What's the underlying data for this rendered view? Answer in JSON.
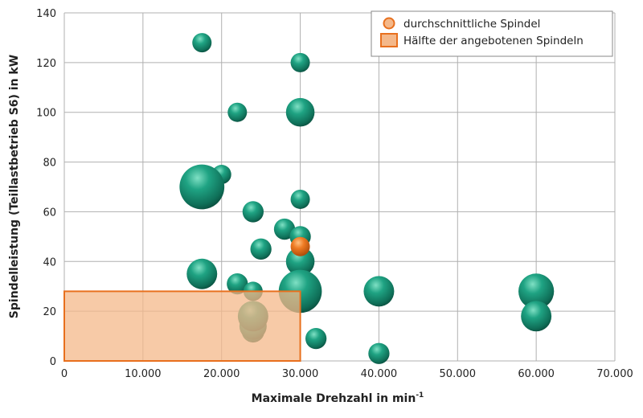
{
  "chart_data": {
    "type": "bubble",
    "xlabel": "Maximale Drehzahl in min",
    "xlabel_superscript": "-1",
    "ylabel": "Spindelleistung (Teillastbetrieb S6) in kW",
    "xlim": [
      0,
      70000
    ],
    "ylim": [
      0,
      140
    ],
    "x_ticks": [
      0,
      10000,
      20000,
      30000,
      40000,
      50000,
      60000,
      70000
    ],
    "x_tick_labels": [
      "0",
      "10.000",
      "20.000",
      "30.000",
      "40.000",
      "50.000",
      "60.000",
      "70.000"
    ],
    "y_ticks": [
      0,
      20,
      40,
      60,
      80,
      100,
      120,
      140
    ],
    "y_tick_labels": [
      "0",
      "20",
      "40",
      "60",
      "80",
      "100",
      "120",
      "140"
    ],
    "grid": true,
    "legend_position": "top-right",
    "colors": {
      "bubble": "#1a9a7a",
      "average": "#e8701e",
      "rect_fill": "#f4b88a",
      "rect_border": "#e8701e",
      "grid": "#b0b0b0"
    },
    "legend": [
      {
        "label": "durchschnittliche Spindel",
        "marker": "circle"
      },
      {
        "label": "Hälfte der angebotenen Spindeln",
        "marker": "square"
      }
    ],
    "points": [
      {
        "x": 17500,
        "y": 65,
        "size": 1
      },
      {
        "x": 17500,
        "y": 128,
        "size": 1
      },
      {
        "x": 30000,
        "y": 120,
        "size": 1
      },
      {
        "x": 22000,
        "y": 100,
        "size": 1
      },
      {
        "x": 30000,
        "y": 100,
        "size": 2.2
      },
      {
        "x": 20000,
        "y": 75,
        "size": 1
      },
      {
        "x": 17500,
        "y": 70,
        "size": 5.4
      },
      {
        "x": 30000,
        "y": 65,
        "size": 1
      },
      {
        "x": 24000,
        "y": 60,
        "size": 1.2
      },
      {
        "x": 28000,
        "y": 53,
        "size": 1.2
      },
      {
        "x": 30000,
        "y": 50,
        "size": 1.2
      },
      {
        "x": 25000,
        "y": 45,
        "size": 1.2
      },
      {
        "x": 30000,
        "y": 40,
        "size": 2.2
      },
      {
        "x": 17500,
        "y": 35,
        "size": 2.5
      },
      {
        "x": 22000,
        "y": 31,
        "size": 1.2
      },
      {
        "x": 24000,
        "y": 28,
        "size": 1
      },
      {
        "x": 30000,
        "y": 28,
        "size": 5
      },
      {
        "x": 40000,
        "y": 28,
        "size": 2.5
      },
      {
        "x": 60000,
        "y": 28,
        "size": 3.4
      },
      {
        "x": 60000,
        "y": 18,
        "size": 2.5
      },
      {
        "x": 24000,
        "y": 12,
        "size": 1.4
      },
      {
        "x": 24000,
        "y": 14,
        "size": 2
      },
      {
        "x": 24000,
        "y": 18,
        "size": 2.5
      },
      {
        "x": 32000,
        "y": 9,
        "size": 1.2
      },
      {
        "x": 40000,
        "y": 3,
        "size": 1.2
      }
    ],
    "average": {
      "x": 30000,
      "y": 46,
      "size": 1
    },
    "half_rect": {
      "x": [
        0,
        30000
      ],
      "y": [
        0,
        28
      ]
    }
  }
}
